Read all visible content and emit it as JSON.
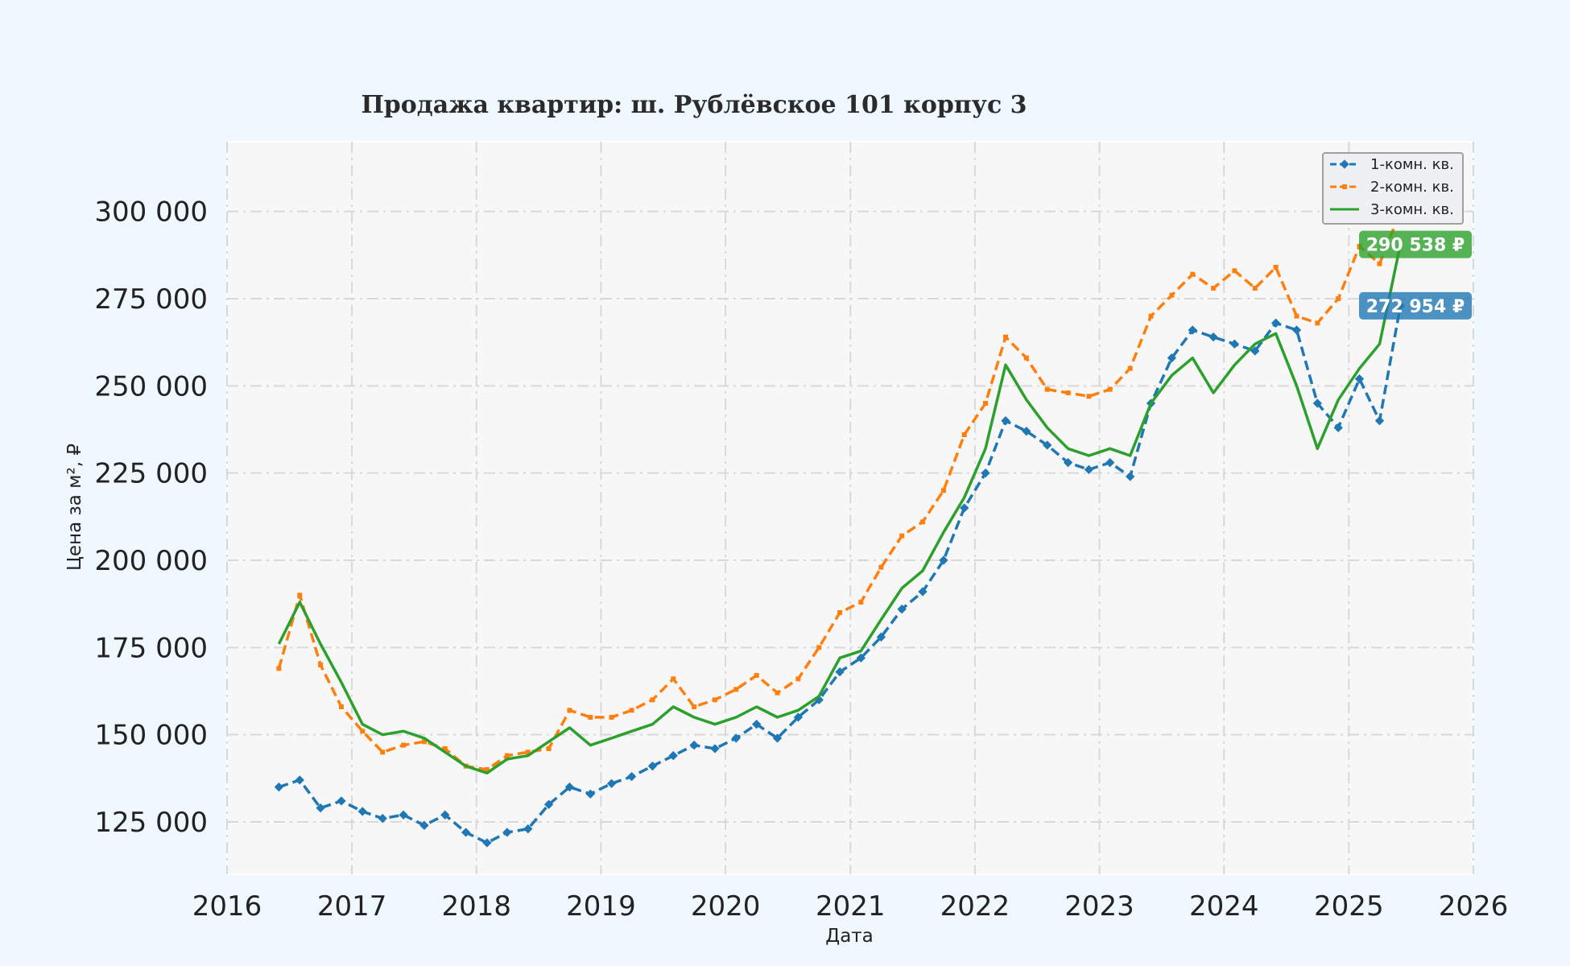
{
  "chart_data": {
    "type": "line",
    "title": "Продажа квартир: ш. Рублёвское 101 корпус 3",
    "xlabel": "Дата",
    "ylabel": "Цена за м², ₽",
    "xlim": [
      "2016-01-01",
      "2026-01-01"
    ],
    "ylim": [
      110000,
      320000
    ],
    "x_ticks": [
      "2016",
      "2017",
      "2018",
      "2019",
      "2020",
      "2021",
      "2022",
      "2023",
      "2024",
      "2025",
      "2026"
    ],
    "y_ticks": [
      125000,
      150000,
      175000,
      200000,
      225000,
      250000,
      275000,
      300000
    ],
    "y_tick_labels": [
      "125 000",
      "150 000",
      "175 000",
      "200 000",
      "225 000",
      "250 000",
      "275 000",
      "300 000"
    ],
    "grid": true,
    "legend_position": "top-right",
    "series": [
      {
        "name": "1-комн. кв.",
        "color": "#1f77b4",
        "style": "dashed-diamond",
        "last_value_label": "272 954 ₽",
        "points": [
          [
            "2016-06-01",
            135000
          ],
          [
            "2016-08-01",
            137000
          ],
          [
            "2016-10-01",
            129000
          ],
          [
            "2016-12-01",
            131000
          ],
          [
            "2017-02-01",
            128000
          ],
          [
            "2017-04-01",
            126000
          ],
          [
            "2017-06-01",
            127000
          ],
          [
            "2017-08-01",
            124000
          ],
          [
            "2017-10-01",
            127000
          ],
          [
            "2017-12-01",
            122000
          ],
          [
            "2018-02-01",
            119000
          ],
          [
            "2018-04-01",
            122000
          ],
          [
            "2018-06-01",
            123000
          ],
          [
            "2018-08-01",
            130000
          ],
          [
            "2018-10-01",
            135000
          ],
          [
            "2018-12-01",
            133000
          ],
          [
            "2019-02-01",
            136000
          ],
          [
            "2019-04-01",
            138000
          ],
          [
            "2019-06-01",
            141000
          ],
          [
            "2019-08-01",
            144000
          ],
          [
            "2019-10-01",
            147000
          ],
          [
            "2019-12-01",
            146000
          ],
          [
            "2020-02-01",
            149000
          ],
          [
            "2020-04-01",
            153000
          ],
          [
            "2020-06-01",
            149000
          ],
          [
            "2020-08-01",
            155000
          ],
          [
            "2020-10-01",
            160000
          ],
          [
            "2020-12-01",
            168000
          ],
          [
            "2021-02-01",
            172000
          ],
          [
            "2021-04-01",
            178000
          ],
          [
            "2021-06-01",
            186000
          ],
          [
            "2021-08-01",
            191000
          ],
          [
            "2021-10-01",
            200000
          ],
          [
            "2021-12-01",
            215000
          ],
          [
            "2022-02-01",
            225000
          ],
          [
            "2022-04-01",
            240000
          ],
          [
            "2022-06-01",
            237000
          ],
          [
            "2022-08-01",
            233000
          ],
          [
            "2022-10-01",
            228000
          ],
          [
            "2022-12-01",
            226000
          ],
          [
            "2023-02-01",
            228000
          ],
          [
            "2023-04-01",
            224000
          ],
          [
            "2023-06-01",
            245000
          ],
          [
            "2023-08-01",
            258000
          ],
          [
            "2023-10-01",
            266000
          ],
          [
            "2023-12-01",
            264000
          ],
          [
            "2024-02-01",
            262000
          ],
          [
            "2024-04-01",
            260000
          ],
          [
            "2024-06-01",
            268000
          ],
          [
            "2024-08-01",
            266000
          ],
          [
            "2024-10-01",
            245000
          ],
          [
            "2024-12-01",
            238000
          ],
          [
            "2025-02-01",
            252000
          ],
          [
            "2025-04-01",
            240000
          ],
          [
            "2025-06-01",
            272954
          ]
        ]
      },
      {
        "name": "2-комн. кв.",
        "color": "#ff7f0e",
        "style": "dashed-square",
        "points": [
          [
            "2016-06-01",
            169000
          ],
          [
            "2016-08-01",
            190000
          ],
          [
            "2016-10-01",
            170000
          ],
          [
            "2016-12-01",
            158000
          ],
          [
            "2017-02-01",
            151000
          ],
          [
            "2017-04-01",
            145000
          ],
          [
            "2017-06-01",
            147000
          ],
          [
            "2017-08-01",
            148000
          ],
          [
            "2017-10-01",
            146000
          ],
          [
            "2017-12-01",
            141000
          ],
          [
            "2018-02-01",
            140000
          ],
          [
            "2018-04-01",
            144000
          ],
          [
            "2018-06-01",
            145000
          ],
          [
            "2018-08-01",
            146000
          ],
          [
            "2018-10-01",
            157000
          ],
          [
            "2018-12-01",
            155000
          ],
          [
            "2019-02-01",
            155000
          ],
          [
            "2019-04-01",
            157000
          ],
          [
            "2019-06-01",
            160000
          ],
          [
            "2019-08-01",
            166000
          ],
          [
            "2019-10-01",
            158000
          ],
          [
            "2019-12-01",
            160000
          ],
          [
            "2020-02-01",
            163000
          ],
          [
            "2020-04-01",
            167000
          ],
          [
            "2020-06-01",
            162000
          ],
          [
            "2020-08-01",
            166000
          ],
          [
            "2020-10-01",
            175000
          ],
          [
            "2020-12-01",
            185000
          ],
          [
            "2021-02-01",
            188000
          ],
          [
            "2021-04-01",
            198000
          ],
          [
            "2021-06-01",
            207000
          ],
          [
            "2021-08-01",
            211000
          ],
          [
            "2021-10-01",
            220000
          ],
          [
            "2021-12-01",
            236000
          ],
          [
            "2022-02-01",
            245000
          ],
          [
            "2022-04-01",
            264000
          ],
          [
            "2022-06-01",
            258000
          ],
          [
            "2022-08-01",
            249000
          ],
          [
            "2022-10-01",
            248000
          ],
          [
            "2022-12-01",
            247000
          ],
          [
            "2023-02-01",
            249000
          ],
          [
            "2023-04-01",
            255000
          ],
          [
            "2023-06-01",
            270000
          ],
          [
            "2023-08-01",
            276000
          ],
          [
            "2023-10-01",
            282000
          ],
          [
            "2023-12-01",
            278000
          ],
          [
            "2024-02-01",
            283000
          ],
          [
            "2024-04-01",
            278000
          ],
          [
            "2024-06-01",
            284000
          ],
          [
            "2024-08-01",
            270000
          ],
          [
            "2024-10-01",
            268000
          ],
          [
            "2024-12-01",
            275000
          ],
          [
            "2025-02-01",
            290000
          ],
          [
            "2025-04-01",
            285000
          ],
          [
            "2025-06-01",
            300000
          ]
        ]
      },
      {
        "name": "3-комн. кв.",
        "color": "#2ca02c",
        "style": "solid",
        "last_value_label": "290 538 ₽",
        "points": [
          [
            "2016-06-01",
            176000
          ],
          [
            "2016-08-01",
            188000
          ],
          [
            "2016-10-01",
            176000
          ],
          [
            "2016-12-01",
            165000
          ],
          [
            "2017-02-01",
            153000
          ],
          [
            "2017-04-01",
            150000
          ],
          [
            "2017-06-01",
            151000
          ],
          [
            "2017-08-01",
            149000
          ],
          [
            "2017-10-01",
            145000
          ],
          [
            "2017-12-01",
            141000
          ],
          [
            "2018-02-01",
            139000
          ],
          [
            "2018-04-01",
            143000
          ],
          [
            "2018-06-01",
            144000
          ],
          [
            "2018-08-01",
            148000
          ],
          [
            "2018-10-01",
            152000
          ],
          [
            "2018-12-01",
            147000
          ],
          [
            "2019-02-01",
            149000
          ],
          [
            "2019-04-01",
            151000
          ],
          [
            "2019-06-01",
            153000
          ],
          [
            "2019-08-01",
            158000
          ],
          [
            "2019-10-01",
            155000
          ],
          [
            "2019-12-01",
            153000
          ],
          [
            "2020-02-01",
            155000
          ],
          [
            "2020-04-01",
            158000
          ],
          [
            "2020-06-01",
            155000
          ],
          [
            "2020-08-01",
            157000
          ],
          [
            "2020-10-01",
            161000
          ],
          [
            "2020-12-01",
            172000
          ],
          [
            "2021-02-01",
            174000
          ],
          [
            "2021-04-01",
            183000
          ],
          [
            "2021-06-01",
            192000
          ],
          [
            "2021-08-01",
            197000
          ],
          [
            "2021-10-01",
            208000
          ],
          [
            "2021-12-01",
            218000
          ],
          [
            "2022-02-01",
            232000
          ],
          [
            "2022-04-01",
            256000
          ],
          [
            "2022-06-01",
            246000
          ],
          [
            "2022-08-01",
            238000
          ],
          [
            "2022-10-01",
            232000
          ],
          [
            "2022-12-01",
            230000
          ],
          [
            "2023-02-01",
            232000
          ],
          [
            "2023-04-01",
            230000
          ],
          [
            "2023-06-01",
            245000
          ],
          [
            "2023-08-01",
            253000
          ],
          [
            "2023-10-01",
            258000
          ],
          [
            "2023-12-01",
            248000
          ],
          [
            "2024-02-01",
            256000
          ],
          [
            "2024-04-01",
            262000
          ],
          [
            "2024-06-01",
            265000
          ],
          [
            "2024-08-01",
            250000
          ],
          [
            "2024-10-01",
            232000
          ],
          [
            "2024-12-01",
            246000
          ],
          [
            "2025-02-01",
            255000
          ],
          [
            "2025-04-01",
            262000
          ],
          [
            "2025-06-01",
            290538
          ]
        ]
      }
    ]
  }
}
